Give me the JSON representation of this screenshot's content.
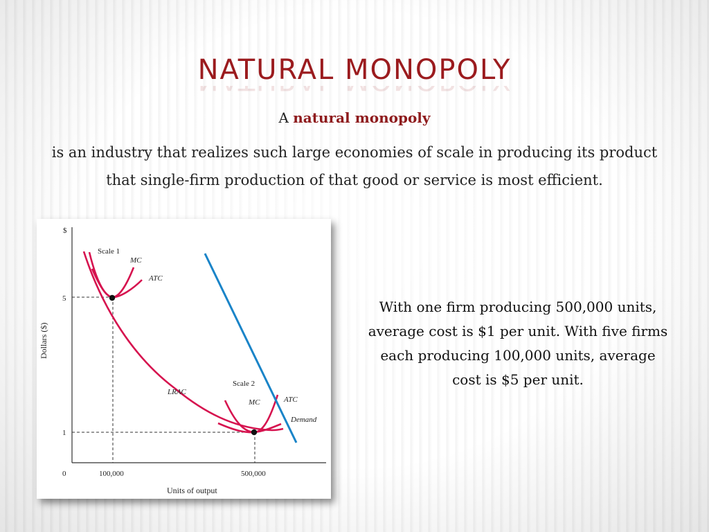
{
  "slide": {
    "title": "Natural Monopoly",
    "lead_prefix": "A",
    "lead_term": "natural monopoly",
    "definition": "is an industry that realizes such large economies of scale in producing its product that single-firm production of that good or service is most efficient.",
    "side_note": "With one firm producing 500,000 units, average cost is $1 per unit. With five firms each producing 100,000 units, average cost is $5 per unit."
  },
  "chart_data": {
    "type": "line",
    "ylabel": "Dollars ($)",
    "xlabel": "Units of output",
    "y_axis_symbol": "$",
    "origin_label": "0",
    "x_ticks": [
      "100,000",
      "500,000"
    ],
    "y_ticks": [
      "5",
      "1"
    ],
    "series": [
      {
        "name": "LRAC",
        "color": "#d6134f"
      },
      {
        "name": "MC",
        "group": "Scale 1",
        "color": "#d6134f"
      },
      {
        "name": "ATC",
        "group": "Scale 1",
        "color": "#d6134f"
      },
      {
        "name": "MC",
        "group": "Scale 2",
        "color": "#d6134f"
      },
      {
        "name": "ATC",
        "group": "Scale 2",
        "color": "#d6134f"
      },
      {
        "name": "Demand",
        "color": "#1a84c8"
      }
    ],
    "labels": {
      "scale1": "Scale 1",
      "scale2": "Scale 2",
      "mc": "MC",
      "atc": "ATC",
      "lrac": "LRAC",
      "demand": "Demand"
    },
    "points": [
      {
        "x": 100000,
        "y": 5
      },
      {
        "x": 500000,
        "y": 1
      }
    ],
    "colors": {
      "cost_curves": "#d6134f",
      "demand": "#1a84c8"
    }
  }
}
